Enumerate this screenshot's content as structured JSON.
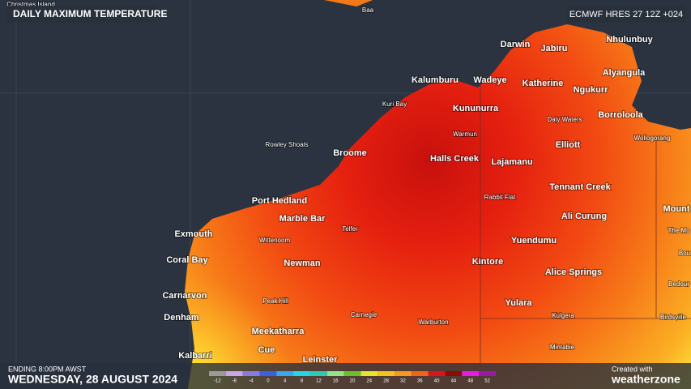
{
  "header": {
    "title": "DAILY MAXIMUM TEMPERATURE",
    "model": "ECMWF HRES 27 12Z +024"
  },
  "places": [
    "Christmas Island",
    "Baa",
    "Darwin",
    "Jabiru",
    "Nhulunbuy",
    "Alyangula",
    "Kalumburu",
    "Wadeye",
    "Katherine",
    "Ngukurr",
    "Kuri Bay",
    "Kununurra",
    "Daly Waters",
    "Borroloola",
    "Warmun",
    "Wollogorang",
    "Rowley Shoals",
    "Broome",
    "Halls Creek",
    "Lajamanu",
    "Elliott",
    "Rabbit Flat",
    "Tennant Creek",
    "Port Hedland",
    "Mount",
    "Marble Bar",
    "Ali Curung",
    "The Mo",
    "Exmouth",
    "Telfer",
    "Wittenoom",
    "Yuendumu",
    "Bou",
    "Coral Bay",
    "Newman",
    "Kintore",
    "Alice Springs",
    "Bedour",
    "Carnarvon",
    "Peak Hill",
    "Yulara",
    "Carnegie",
    "Kulgera",
    "Birdsville",
    "Denham",
    "Warburton",
    "Meekatharra",
    "Mintabie",
    "Cue",
    "Kalbarri",
    "Leinster"
  ],
  "footer": {
    "period": "ENDING 8:00PM AWST",
    "date": "WEDNESDAY, 28 AUGUST 2024",
    "credit": "Created with",
    "brand": "weatherzone"
  },
  "legend": {
    "labels": [
      -12,
      -8,
      -4,
      0,
      4,
      8,
      12,
      16,
      20,
      24,
      28,
      32,
      36,
      40,
      44,
      48,
      52
    ],
    "colors": [
      "#9a9a9a",
      "#c9a6e8",
      "#8a7ae0",
      "#3a5fe0",
      "#3aa6f0",
      "#22d8e8",
      "#2ec9b0",
      "#8ee68a",
      "#6cc02a",
      "#e6e62a",
      "#f2c21e",
      "#f59a1a",
      "#f0641a",
      "#d8161a",
      "#8a0a0a",
      "#e81ae6",
      "#9a1aa6"
    ]
  }
}
